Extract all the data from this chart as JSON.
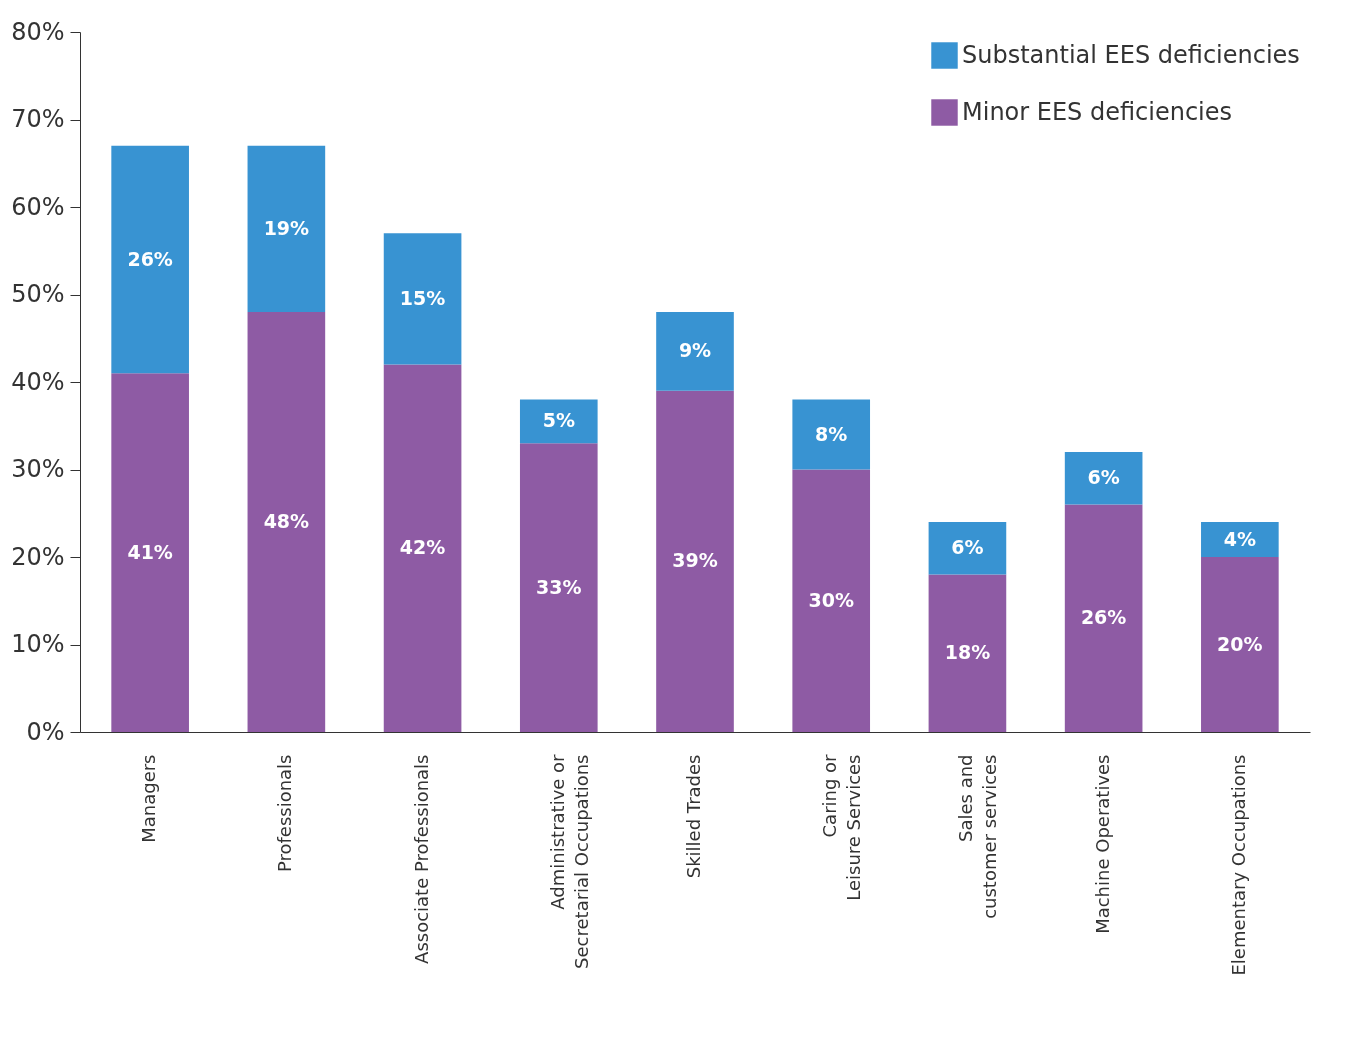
{
  "chart_data": {
    "type": "bar",
    "stacked": true,
    "categories": [
      "Managers",
      "Professionals",
      "Associate Professionals",
      "Administrative or\nSecretarial Occupations",
      "Skilled Trades",
      "Caring or\nLeisure Services",
      "Sales and\ncustomer services",
      "Machine Operatives",
      "Elementary Occupations"
    ],
    "series": [
      {
        "name": "Minor EES deficiencies",
        "color": "#8e5ba4",
        "values": [
          41,
          48,
          42,
          33,
          39,
          30,
          18,
          26,
          20
        ],
        "value_labels": [
          "41%",
          "48%",
          "42%",
          "33%",
          "39%",
          "30%",
          "18%",
          "26%",
          "20%"
        ]
      },
      {
        "name": "Substantial EES deficiencies",
        "color": "#3893d2",
        "values": [
          26,
          19,
          15,
          5,
          9,
          8,
          6,
          6,
          4
        ],
        "value_labels": [
          "26%",
          "19%",
          "15%",
          "5%",
          "9%",
          "8%",
          "6%",
          "6%",
          "4%"
        ]
      }
    ],
    "ylim": [
      0,
      80
    ],
    "yticks": [
      {
        "value": 0,
        "label": "0%"
      },
      {
        "value": 10,
        "label": "10%"
      },
      {
        "value": 20,
        "label": "20%"
      },
      {
        "value": 30,
        "label": "30%"
      },
      {
        "value": 40,
        "label": "40%"
      },
      {
        "value": 50,
        "label": "50%"
      },
      {
        "value": 60,
        "label": "60%"
      },
      {
        "value": 70,
        "label": "70%"
      },
      {
        "value": 80,
        "label": "80%"
      }
    ],
    "grid": false,
    "legend": "top right"
  }
}
